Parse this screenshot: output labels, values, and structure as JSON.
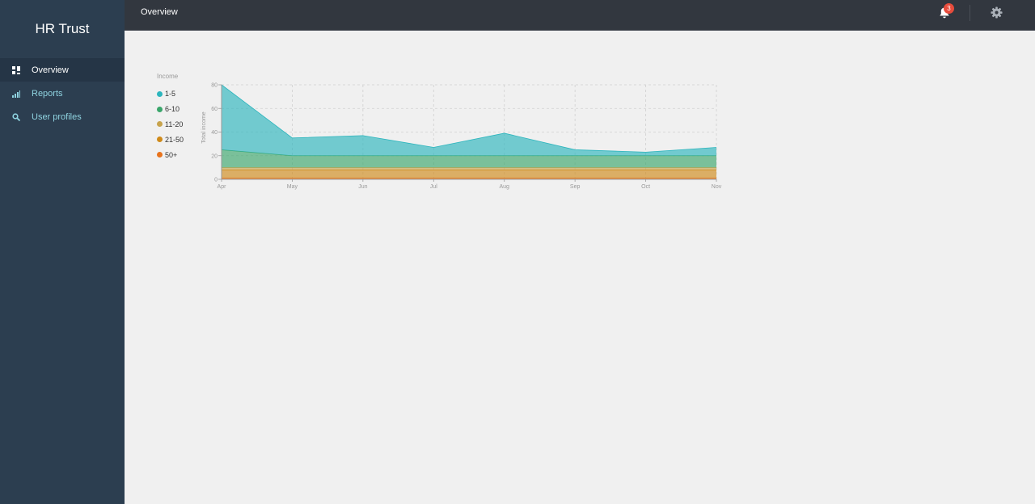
{
  "app": {
    "brand": "HR Trust"
  },
  "sidebar": {
    "items": [
      {
        "label": "Overview",
        "icon": "dashboard-icon"
      },
      {
        "label": "Reports",
        "icon": "bar-chart-icon"
      },
      {
        "label": "User profiles",
        "icon": "search-icon"
      }
    ]
  },
  "header": {
    "title": "Overview",
    "notification_count": "3"
  },
  "legend": {
    "title": "Income",
    "items": [
      {
        "label": "1-5",
        "color": "#2cb5bd"
      },
      {
        "label": "6-10",
        "color": "#3aa66b"
      },
      {
        "label": "11-20",
        "color": "#c7a34c"
      },
      {
        "label": "21-50",
        "color": "#cf8a1a"
      },
      {
        "label": "50+",
        "color": "#e8731c"
      }
    ]
  },
  "chart_data": {
    "type": "area",
    "stacked": true,
    "title": "",
    "xlabel": "",
    "ylabel": "Total income",
    "x": [
      "Apr",
      "May",
      "Jun",
      "Jul",
      "Aug",
      "Sep",
      "Oct",
      "Nov"
    ],
    "ylim": [
      0,
      80
    ],
    "yticks": [
      0,
      20,
      40,
      60,
      80
    ],
    "grid": true,
    "legend_position": "left",
    "series": [
      {
        "name": "50+",
        "color": "#e8731c",
        "values": [
          1,
          1,
          1,
          1,
          1,
          1,
          1,
          1
        ]
      },
      {
        "name": "21-50",
        "color": "#cf8a1a",
        "values": [
          7,
          7,
          7,
          7,
          7,
          7,
          7,
          7
        ]
      },
      {
        "name": "11-20",
        "color": "#c7a34c",
        "values": [
          2,
          2,
          2,
          2,
          2,
          2,
          2,
          2
        ]
      },
      {
        "name": "6-10",
        "color": "#3aa66b",
        "values": [
          15,
          10,
          10,
          10,
          10,
          10,
          10,
          10
        ]
      },
      {
        "name": "1-5",
        "color": "#2cb5bd",
        "values": [
          55,
          15,
          17,
          7,
          19,
          5,
          3,
          7
        ]
      }
    ]
  }
}
